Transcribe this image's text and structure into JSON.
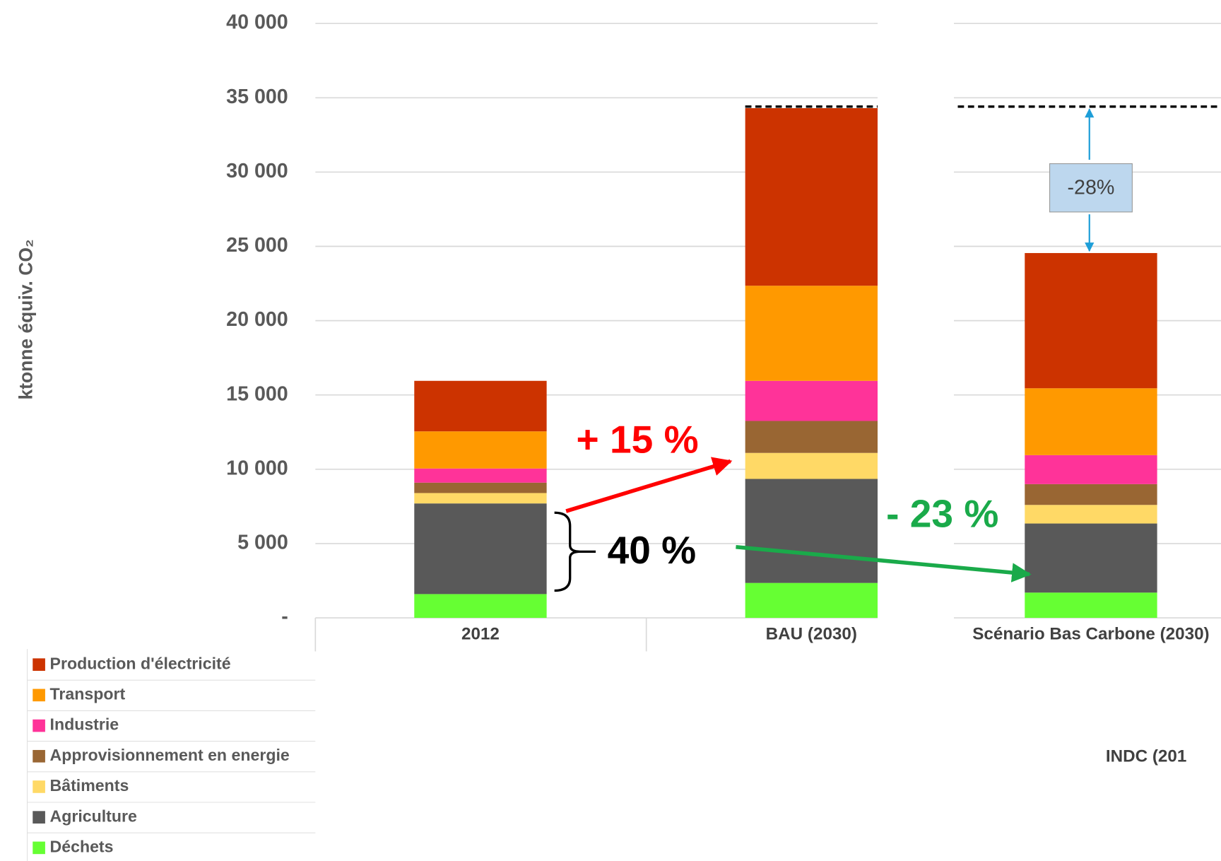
{
  "chart_data": {
    "type": "stacked_bar",
    "ylabel": "ktonne équiv. CO₂",
    "categories": [
      "2012",
      "BAU (2030)",
      "Scénario Bas Carbone (2030)"
    ],
    "series": [
      {
        "name": "Production d'électricité",
        "color": "#cc3300",
        "values": [
          3400,
          11950,
          9100
        ]
      },
      {
        "name": "Transport",
        "color": "#ff9900",
        "values": [
          2500,
          6400,
          4500
        ]
      },
      {
        "name": "Industrie",
        "color": "#ff3399",
        "values": [
          950,
          2700,
          1950
        ]
      },
      {
        "name": "Approvisionnement en energie",
        "color": "#996633",
        "values": [
          700,
          2150,
          1400
        ]
      },
      {
        "name": "Bâtiments",
        "color": "#ffd966",
        "values": [
          700,
          1750,
          1250
        ]
      },
      {
        "name": "Agriculture",
        "color": "#595959",
        "values": [
          6100,
          7000,
          4650
        ]
      },
      {
        "name": "Déchets",
        "color": "#66ff33",
        "values": [
          1600,
          2350,
          1700
        ]
      }
    ],
    "ylim": [
      0,
      40000
    ],
    "yticks": [
      {
        "value": 0,
        "label": "-"
      },
      {
        "value": 5000,
        "label": "5 000"
      },
      {
        "value": 10000,
        "label": "10 000"
      },
      {
        "value": 15000,
        "label": "15 000"
      },
      {
        "value": 20000,
        "label": "20 000"
      },
      {
        "value": 25000,
        "label": "25 000"
      },
      {
        "value": 30000,
        "label": "30 000"
      },
      {
        "value": 35000,
        "label": "35 000"
      },
      {
        "value": 40000,
        "label": "40 000"
      }
    ],
    "grid": true,
    "annotations": [
      "+ 15 %",
      "40 %",
      "- 23 %",
      "-28%",
      "INDC (201"
    ]
  }
}
